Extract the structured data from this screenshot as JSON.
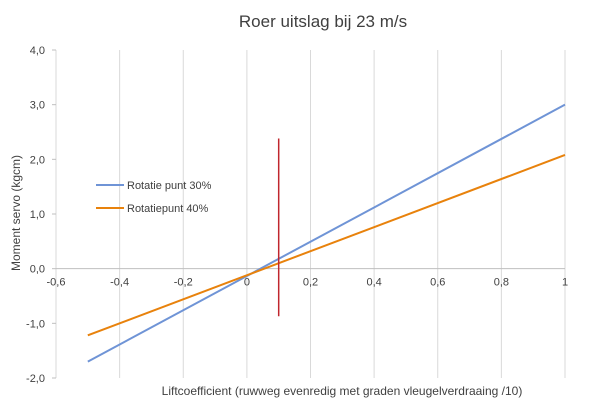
{
  "chart_data": {
    "type": "line",
    "title": "Roer uitslag bij 23 m/s",
    "xlabel": "Liftcoefficient (ruwweg evenredig met graden vleugelverdraaing /10)",
    "ylabel": "Moment servo  (kgcm)",
    "xlim": [
      -0.6,
      1.0
    ],
    "ylim": [
      -2.0,
      4.0
    ],
    "x_ticks": [
      -0.6,
      -0.4,
      -0.2,
      0,
      0.2,
      0.4,
      0.6,
      0.8,
      1
    ],
    "x_tick_labels": [
      "-0,6",
      "-0,4",
      "-0,2",
      "0",
      "0,2",
      "0,4",
      "0,6",
      "0,8",
      "1"
    ],
    "y_ticks": [
      -2,
      -1,
      0,
      1,
      2,
      3,
      4
    ],
    "y_tick_labels": [
      "-2,0",
      "-1,0",
      "0,0",
      "1,0",
      "2,0",
      "3,0",
      "4,0"
    ],
    "grid": "vertical",
    "legend_position": "left",
    "series": [
      {
        "name": "Rotatie punt 30%",
        "color": "#6f94d6",
        "x": [
          -0.5,
          1.0
        ],
        "y": [
          -1.7,
          3.0
        ]
      },
      {
        "name": "Rotatiepunt 40%",
        "color": "#e8820c",
        "x": [
          -0.5,
          1.0
        ],
        "y": [
          -1.22,
          2.08
        ]
      }
    ],
    "annotations": [
      {
        "type": "vertical-line",
        "color": "#c0262d",
        "x": 0.1,
        "y_from": -0.87,
        "y_to": 2.38
      }
    ]
  }
}
